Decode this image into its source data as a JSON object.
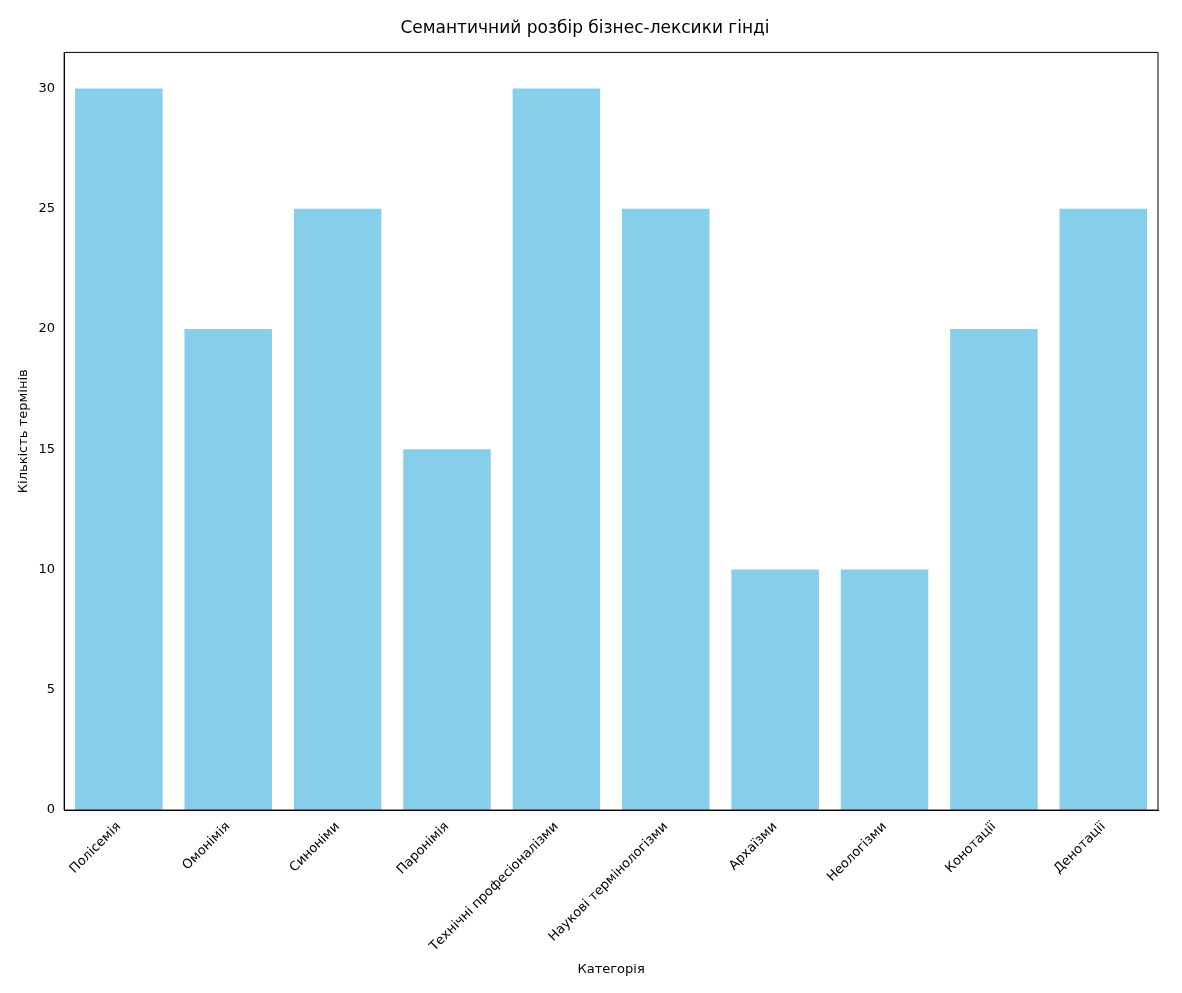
{
  "chart_data": {
    "type": "bar",
    "title": "Семантичний розбір бізнес-лексики гінді",
    "xlabel": "Категорія",
    "ylabel": "Кількість термінів",
    "categories": [
      "Полісемія",
      "Омонімія",
      "Синоніми",
      "Паронімія",
      "Технічні професіоналізми",
      "Наукові термінологізми",
      "Архаїзми",
      "Неологізми",
      "Конотації",
      "Денотації"
    ],
    "values": [
      30,
      20,
      25,
      15,
      30,
      25,
      10,
      10,
      20,
      25
    ],
    "color": "#87ceeb",
    "ylim": [
      0,
      31.5
    ],
    "yticks": [
      0,
      5,
      10,
      15,
      20,
      25,
      30
    ],
    "grid": false,
    "legend": false
  }
}
